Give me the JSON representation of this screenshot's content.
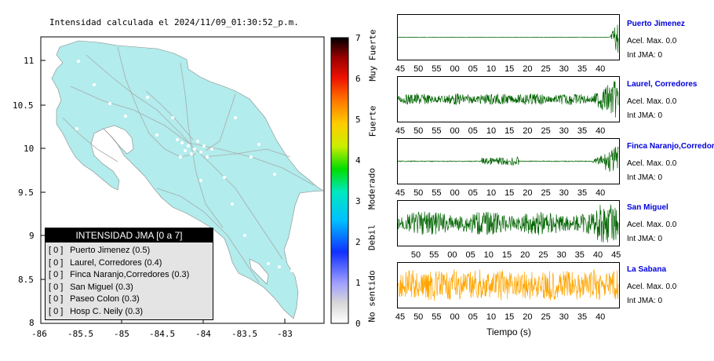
{
  "map": {
    "title": "Intensidad calculada el 2024/11/09_01:30:52_p.m.",
    "y_ticks": [
      "11",
      "10.5",
      "10",
      "9.5",
      "9",
      "8.5",
      "8"
    ],
    "x_ticks": [
      "-86",
      "-85.5",
      "-85",
      "-84.5",
      "-84",
      "-83.5",
      "-83"
    ],
    "land_color": "#b2ecec",
    "sea_color": "#ffffff"
  },
  "colorbar": {
    "ticks": [
      "7",
      "6",
      "5",
      "4",
      "3",
      "2",
      "1",
      "0"
    ],
    "words": [
      "Muy Fuerte",
      "Fuerte",
      "Moderado",
      "Debil",
      "No sentido"
    ]
  },
  "legend": {
    "title": "INTENSIDAD JMA [0 a 7]",
    "items": [
      {
        "bracket": "[ 0 ]",
        "text": "Puerto Jimenez (0.5)"
      },
      {
        "bracket": "[ 0 ]",
        "text": "Laurel, Corredores (0.4)"
      },
      {
        "bracket": "[ 0 ]",
        "text": "Finca Naranjo,Corredores (0.3)"
      },
      {
        "bracket": "[ 0 ]",
        "text": "San Miguel (0.3)"
      },
      {
        "bracket": "[ 0 ]",
        "text": "Paseo Colon (0.3)"
      },
      {
        "bracket": "[ 0 ]",
        "text": "Hosp C. Neily (0.3)"
      }
    ]
  },
  "stations": [
    {
      "name": "Puerto Jimenez",
      "acel": "Acel. Max. 0.0",
      "int": "Int JMA: 0",
      "color": "#006400",
      "ticks": [
        "45",
        "50",
        "55",
        "00",
        "05",
        "10",
        "15",
        "20",
        "25",
        "30",
        "35",
        "40"
      ]
    },
    {
      "name": "Laurel, Corredores",
      "acel": "Acel. Max. 0.0",
      "int": "Int JMA: 0",
      "color": "#006400",
      "ticks": [
        "45",
        "50",
        "55",
        "00",
        "05",
        "10",
        "15",
        "20",
        "25",
        "30",
        "35",
        "40"
      ]
    },
    {
      "name": "Finca Naranjo,Corredores",
      "acel": "Acel. Max. 0.0",
      "int": "Int JMA: 0",
      "color": "#006400",
      "ticks": [
        "45",
        "50",
        "55",
        "00",
        "05",
        "10",
        "15",
        "20",
        "25",
        "30",
        "35",
        "40"
      ]
    },
    {
      "name": "San Miguel",
      "acel": "Acel. Max. 0.0",
      "int": "Int JMA: 0",
      "color": "#006400",
      "ticks": [
        "50",
        "55",
        "00",
        "05",
        "10",
        "15",
        "20",
        "25",
        "30",
        "35",
        "40",
        "45"
      ]
    },
    {
      "name": "La Sabana",
      "acel": "Acel. Max. 0.0",
      "int": "Int JMA: 0",
      "color": "#ffa500",
      "ticks": [
        "45",
        "50",
        "55",
        "00",
        "05",
        "10",
        "15",
        "20",
        "25",
        "30",
        "35",
        "40"
      ]
    }
  ],
  "time_axis_label": "Tiempo (s)"
}
